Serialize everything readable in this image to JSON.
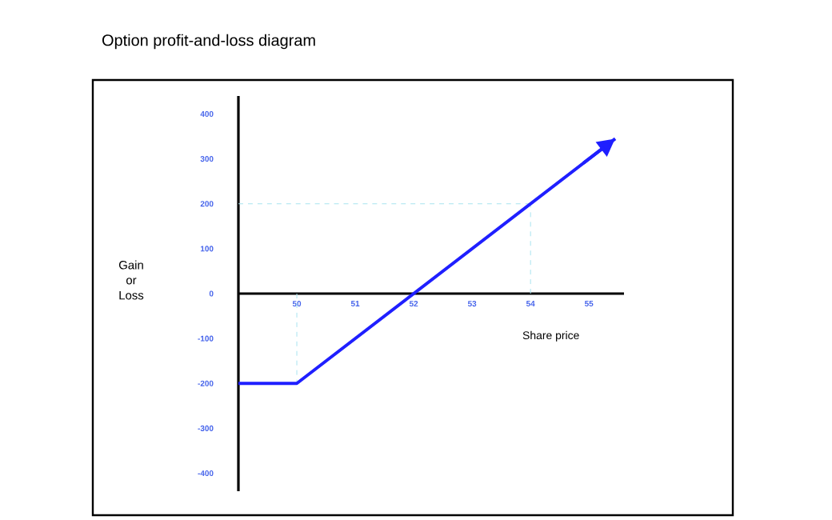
{
  "chart_data": {
    "type": "line",
    "title": "Option profit-and-loss diagram",
    "xlabel": "Share price",
    "ylabel": "Gain or Loss",
    "x": [
      49,
      50,
      55.45
    ],
    "values": [
      -200,
      -200,
      345
    ],
    "color": "#1f1fff",
    "line_style": "solid",
    "xlim": [
      49,
      55.6
    ],
    "ylim": [
      -440,
      440
    ],
    "xticks": [
      50,
      51,
      52,
      53,
      54,
      55
    ],
    "yticks": [
      -400,
      -300,
      -200,
      -100,
      0,
      100,
      200,
      300,
      400
    ],
    "ref_lines": [
      {
        "axis": "x",
        "value": 50,
        "color": "#a8e4f0",
        "line_style": "dashed"
      },
      {
        "axis": "x",
        "value": 54,
        "color": "#a8e4f0",
        "line_style": "dashed"
      },
      {
        "axis": "y",
        "value": 200,
        "color": "#a8e4f0",
        "line_style": "dashed"
      }
    ]
  }
}
